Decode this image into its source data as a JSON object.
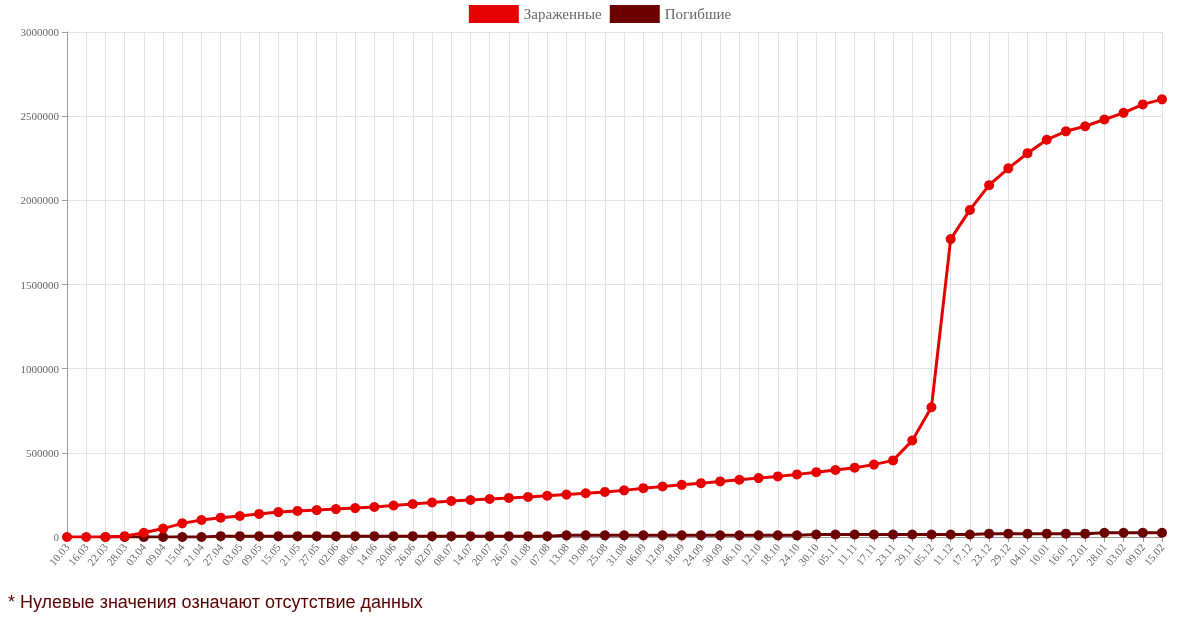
{
  "chart_data": {
    "type": "line",
    "categories": [
      "10.03",
      "16.03",
      "22.03",
      "28.03",
      "03.04",
      "09.04",
      "15.04",
      "21.04",
      "27.04",
      "03.05",
      "09.05",
      "15.05",
      "21.05",
      "27.05",
      "02.06",
      "08.06",
      "14.06",
      "20.06",
      "26.06",
      "02.07",
      "08.07",
      "14.07",
      "20.07",
      "26.07",
      "01.08",
      "07.08",
      "13.08",
      "19.08",
      "25.08",
      "31.08",
      "06.09",
      "12.09",
      "18.09",
      "24.09",
      "30.09",
      "06.10",
      "12.10",
      "18.10",
      "24.10",
      "30.10",
      "05.11",
      "11.11",
      "17.11",
      "23.11",
      "29.11",
      "05.12",
      "11.12",
      "17.12",
      "23.12",
      "29.12",
      "04.01",
      "10.01",
      "16.01",
      "22.01",
      "28.01",
      "03.02",
      "09.02",
      "15.02"
    ],
    "series": [
      {
        "name": "Зараженные",
        "color": "#e60000",
        "values": [
          0,
          0,
          0,
          5000,
          25000,
          50000,
          81000,
          101000,
          115000,
          125000,
          137000,
          148000,
          155000,
          160000,
          166000,
          172000,
          178000,
          187000,
          196000,
          205000,
          214000,
          220000,
          226000,
          232000,
          238000,
          245000,
          252000,
          260000,
          268000,
          277000,
          290000,
          300000,
          310000,
          320000,
          330000,
          340000,
          350000,
          360000,
          372000,
          385000,
          398000,
          412000,
          430000,
          455000,
          573000,
          771000,
          1770000,
          1943000,
          2090000,
          2190000,
          2280000,
          2360000,
          2410000,
          2440000,
          2480000,
          2520000,
          2570000,
          2600000
        ]
      },
      {
        "name": "Погибшие",
        "color": "#6b0000",
        "values": [
          null,
          null,
          0,
          0,
          0,
          0,
          0,
          0,
          5000,
          5000,
          5000,
          5000,
          5000,
          5000,
          5000,
          5000,
          5000,
          5000,
          5000,
          5000,
          5000,
          5000,
          5000,
          5000,
          5000,
          5000,
          10000,
          10000,
          10000,
          10000,
          10000,
          10000,
          10000,
          10000,
          10000,
          10000,
          10000,
          10000,
          10000,
          15000,
          15000,
          15000,
          15000,
          15000,
          15000,
          15000,
          15000,
          15000,
          20000,
          20000,
          20000,
          20000,
          20000,
          20000,
          25000,
          25000,
          25000,
          25000
        ]
      }
    ],
    "ylim": [
      0,
      3000000
    ],
    "yticks": [
      0,
      500000,
      1000000,
      1500000,
      2000000,
      2500000,
      3000000
    ],
    "grid": true,
    "legend": "top",
    "marker": "circle",
    "line_style": "solid",
    "annotations": [
      "* Нулевые значения означают отсутствие данных"
    ]
  }
}
